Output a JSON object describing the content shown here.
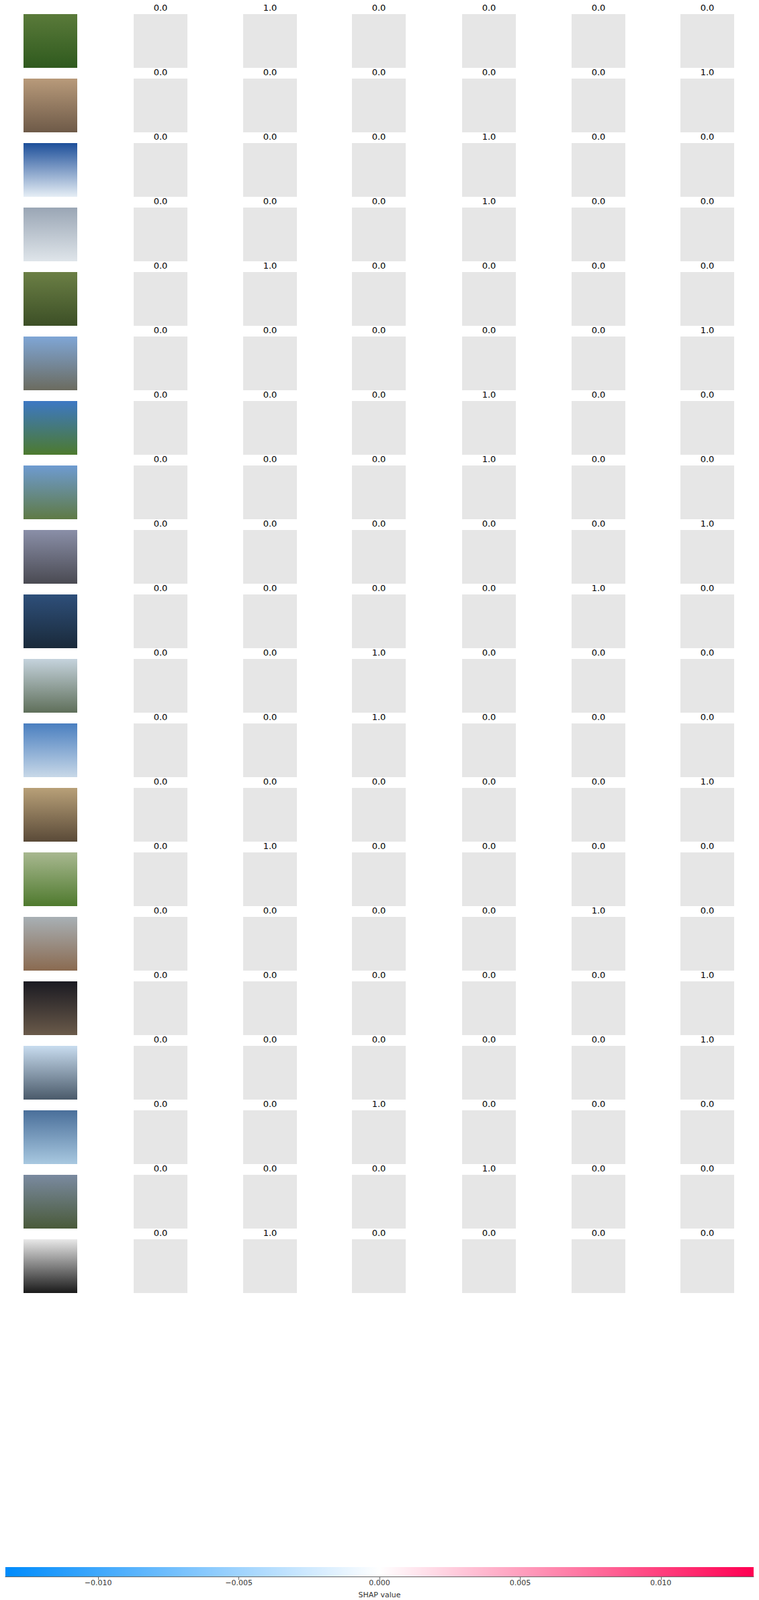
{
  "chart_data": {
    "type": "image_grid",
    "rows": [
      {
        "labels": [
          "0.0",
          "1.0",
          "0.0",
          "0.0",
          "0.0",
          "0.0"
        ]
      },
      {
        "labels": [
          "0.0",
          "0.0",
          "0.0",
          "0.0",
          "0.0",
          "1.0"
        ]
      },
      {
        "labels": [
          "0.0",
          "0.0",
          "0.0",
          "1.0",
          "0.0",
          "0.0"
        ]
      },
      {
        "labels": [
          "0.0",
          "0.0",
          "0.0",
          "1.0",
          "0.0",
          "0.0"
        ]
      },
      {
        "labels": [
          "0.0",
          "1.0",
          "0.0",
          "0.0",
          "0.0",
          "0.0"
        ]
      },
      {
        "labels": [
          "0.0",
          "0.0",
          "0.0",
          "0.0",
          "0.0",
          "1.0"
        ]
      },
      {
        "labels": [
          "0.0",
          "0.0",
          "0.0",
          "1.0",
          "0.0",
          "0.0"
        ]
      },
      {
        "labels": [
          "0.0",
          "0.0",
          "0.0",
          "1.0",
          "0.0",
          "0.0"
        ]
      },
      {
        "labels": [
          "0.0",
          "0.0",
          "0.0",
          "0.0",
          "0.0",
          "1.0"
        ]
      },
      {
        "labels": [
          "0.0",
          "0.0",
          "0.0",
          "0.0",
          "1.0",
          "0.0"
        ]
      },
      {
        "labels": [
          "0.0",
          "0.0",
          "1.0",
          "0.0",
          "0.0",
          "0.0"
        ]
      },
      {
        "labels": [
          "0.0",
          "0.0",
          "1.0",
          "0.0",
          "0.0",
          "0.0"
        ]
      },
      {
        "labels": [
          "0.0",
          "0.0",
          "0.0",
          "0.0",
          "0.0",
          "1.0"
        ]
      },
      {
        "labels": [
          "0.0",
          "1.0",
          "0.0",
          "0.0",
          "0.0",
          "0.0"
        ]
      },
      {
        "labels": [
          "0.0",
          "0.0",
          "0.0",
          "0.0",
          "1.0",
          "0.0"
        ]
      },
      {
        "labels": [
          "0.0",
          "0.0",
          "0.0",
          "0.0",
          "0.0",
          "1.0"
        ]
      },
      {
        "labels": [
          "0.0",
          "0.0",
          "0.0",
          "0.0",
          "0.0",
          "1.0"
        ]
      },
      {
        "labels": [
          "0.0",
          "0.0",
          "1.0",
          "0.0",
          "0.0",
          "0.0"
        ]
      },
      {
        "labels": [
          "0.0",
          "0.0",
          "0.0",
          "1.0",
          "0.0",
          "0.0"
        ]
      },
      {
        "labels": [
          "0.0",
          "1.0",
          "0.0",
          "0.0",
          "0.0",
          "0.0"
        ]
      }
    ],
    "colorbar": {
      "label": "SHAP value",
      "range": [
        -0.0133,
        0.0133
      ],
      "ticks": [
        {
          "value": -0.01,
          "label": "−0.010"
        },
        {
          "value": -0.005,
          "label": "−0.005"
        },
        {
          "value": 0,
          "label": "0.000"
        },
        {
          "value": 0.005,
          "label": "0.005"
        },
        {
          "value": 0.01,
          "label": "0.010"
        }
      ],
      "colors": [
        "#008bfb",
        "#ffffff",
        "#ff0052"
      ]
    }
  }
}
